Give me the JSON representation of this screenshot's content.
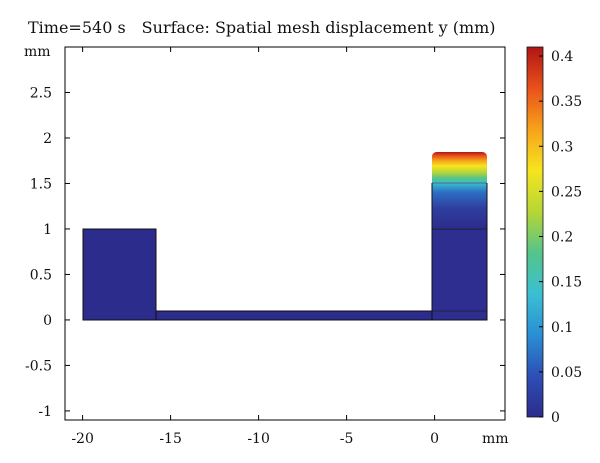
{
  "header": {
    "time_label": "Time=540 s",
    "surface_label": "Surface: Spatial mesh displacement y (mm)"
  },
  "chart_data": {
    "type": "heatmap",
    "title": "Time=540 s    Surface: Spatial mesh displacement y (mm)",
    "xlabel": "mm",
    "ylabel": "mm",
    "xlim": [
      -21,
      4
    ],
    "ylim": [
      -1.1,
      3.0
    ],
    "x_ticks": [
      -20,
      -15,
      -10,
      -5,
      0
    ],
    "x_tick_labels": [
      "-20",
      "-15",
      "-10",
      "-5",
      "0"
    ],
    "y_ticks": [
      2.5,
      2,
      1.5,
      1,
      0.5,
      0,
      -0.5,
      -1
    ],
    "y_tick_labels": [
      "2.5",
      "2",
      "1.5",
      "1",
      "0.5",
      "0",
      "-0.5",
      "-1"
    ],
    "regions": [
      {
        "x": [
          -19,
          -15
        ],
        "y": [
          0,
          1
        ],
        "value": 0
      },
      {
        "x": [
          -15,
          0
        ],
        "y": [
          0,
          0.1
        ],
        "value": 0
      },
      {
        "x": [
          0,
          3
        ],
        "y": [
          0,
          1.0
        ],
        "value": 0.02
      },
      {
        "x": [
          0,
          3
        ],
        "y": [
          1.0,
          1.5
        ],
        "value_range": [
          0.02,
          0.1
        ]
      },
      {
        "x": [
          0,
          3
        ],
        "y": [
          1.5,
          1.85
        ],
        "value_range": [
          0.1,
          0.4
        ]
      }
    ],
    "colorbar": {
      "min": 0,
      "max": 0.41,
      "ticks": [
        0.4,
        0.35,
        0.3,
        0.25,
        0.2,
        0.15,
        0.1,
        0.05,
        0
      ],
      "tick_labels": [
        "0.4",
        "0.35",
        "0.3",
        "0.25",
        "0.2",
        "0.15",
        "0.1",
        "0.05",
        "0"
      ],
      "colormap": [
        "#2c2c8c",
        "#2d4fb5",
        "#2a8fd4",
        "#3bbfd2",
        "#55c48a",
        "#b7d634",
        "#f6e41f",
        "#f7a21b",
        "#e8511a",
        "#b01515"
      ]
    }
  }
}
